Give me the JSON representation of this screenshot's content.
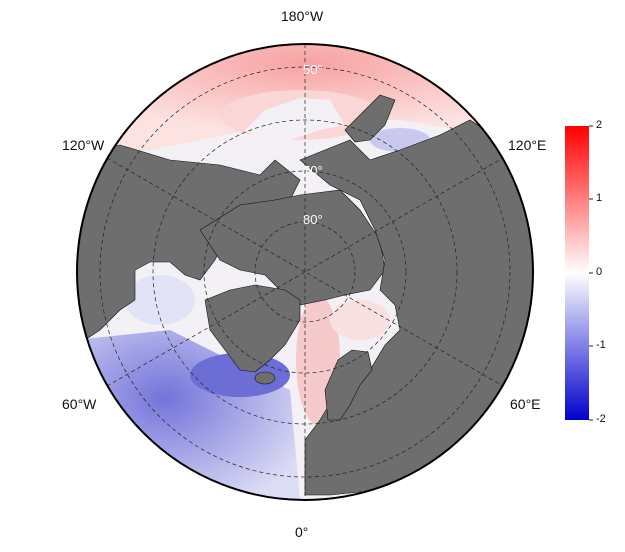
{
  "map": {
    "projection": "north polar stereographic",
    "longitude_labels": {
      "top": "180°W",
      "bottom": "0°",
      "upper_left": "120°W",
      "upper_right": "120°E",
      "lower_left": "60°W",
      "lower_right": "60°E"
    },
    "latitude_labels": [
      "50°",
      "70°",
      "80°"
    ],
    "land_color": "#6e6e6e",
    "coastline_color": "#000000",
    "graticule_style": "dashed"
  },
  "colorbar": {
    "ticks": [
      "2",
      "1",
      "0",
      "-1",
      "-2"
    ],
    "min": -2,
    "max": 2,
    "colors": [
      "#0000cc",
      "#ffffff",
      "#ff0000"
    ]
  }
}
